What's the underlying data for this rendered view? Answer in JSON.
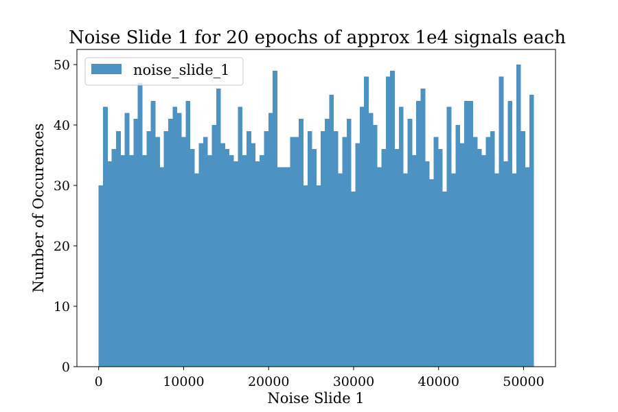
{
  "chart_data": {
    "type": "bar",
    "title": "Noise Slide 1 for 20 epochs of approx 1e4 signals each",
    "xlabel": "Noise Slide 1",
    "ylabel": "Number of Occurences",
    "xlim": [
      -2560,
      53760
    ],
    "ylim": [
      0,
      52.5
    ],
    "xticks": [
      0,
      10000,
      20000,
      30000,
      40000,
      50000
    ],
    "xtick_labels": [
      "0",
      "10000",
      "20000",
      "30000",
      "40000",
      "50000"
    ],
    "yticks": [
      0,
      10,
      20,
      30,
      40,
      50
    ],
    "ytick_labels": [
      "0",
      "10",
      "20",
      "30",
      "40",
      "50"
    ],
    "grid": false,
    "legend_position": "top-left",
    "bin_start": 0,
    "bin_end": 51200,
    "series": [
      {
        "name": "noise_slide_1",
        "color": "#4c92c3",
        "values": [
          30,
          43,
          34,
          36,
          39,
          35,
          42,
          35,
          41,
          47,
          35,
          39,
          44,
          38,
          33,
          39,
          41,
          43,
          42,
          38,
          44,
          36,
          32,
          37,
          38,
          35,
          40,
          46,
          37,
          36,
          35,
          34,
          43,
          35,
          39,
          37,
          34,
          35,
          39,
          42,
          49,
          33,
          33,
          33,
          38,
          38,
          41,
          30,
          39,
          36,
          30,
          39,
          41,
          45,
          39,
          32,
          38,
          41,
          29,
          37,
          43,
          48,
          42,
          40,
          33,
          36,
          48,
          49,
          36,
          43,
          32,
          41,
          35,
          44,
          46,
          34,
          31,
          38,
          36,
          29,
          43,
          32,
          40,
          37,
          44,
          44,
          38,
          36,
          35,
          38,
          39,
          32,
          48,
          34,
          44,
          32,
          50,
          39,
          33,
          45
        ]
      }
    ]
  }
}
